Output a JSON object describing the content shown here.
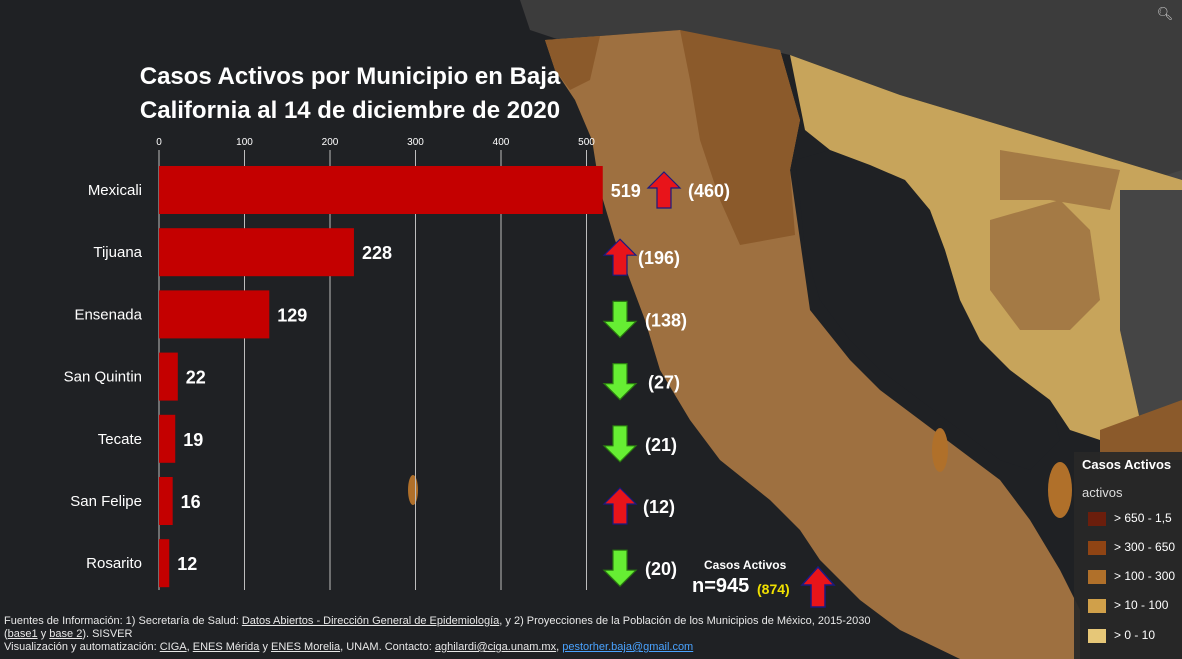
{
  "chart_data": {
    "type": "bar",
    "orientation": "horizontal",
    "title": "Casos Activos por Municipio en Baja California al 14 de diciembre de 2020",
    "title_line1": "Casos Activos por Municipio en Baja",
    "title_line2": "California al 14 de diciembre de 2020",
    "categories": [
      "Mexicali",
      "Tijuana",
      "Ensenada",
      "San Quintin",
      "Tecate",
      "San Felipe",
      "Rosarito"
    ],
    "values": [
      519,
      228,
      129,
      22,
      19,
      16,
      12
    ],
    "previous_values": [
      "(460)",
      "(196)",
      "(138)",
      "(27)",
      "(21)",
      "(12)",
      "(20)"
    ],
    "trend": [
      "up",
      "up",
      "down",
      "down",
      "down",
      "up",
      "down"
    ],
    "xlim": [
      0,
      520
    ],
    "xticks": [
      0,
      100,
      200,
      300,
      400,
      500
    ],
    "tick_labels": [
      "0",
      "100",
      "200",
      "300",
      "400",
      "500"
    ],
    "grid": true,
    "bar_color": "#c40000",
    "up_color": "#e8141a",
    "down_color": "#66ee33",
    "total": {
      "label": "Casos Activos",
      "value": "n=945",
      "previous": "(874)",
      "trend": "up"
    }
  },
  "legend": {
    "title": "Casos Activos",
    "subtitle": "activos",
    "items": [
      {
        "label": "> 650 - 1,5",
        "color": "#6b1e0c"
      },
      {
        "label": "> 300 - 650",
        "color": "#8f4414"
      },
      {
        "label": "> 100 - 300",
        "color": "#b0702a"
      },
      {
        "label": "> 10 - 100",
        "color": "#d0a04a"
      },
      {
        "label": "> 0 - 10",
        "color": "#e6c778"
      }
    ]
  },
  "map_colors": {
    "ocean": "#1f2124",
    "land_dark": "#3c3c3c",
    "baja": "#9e7040",
    "sonora_light": "#c7a45b",
    "sonora_mid": "#a47a45",
    "brown": "#8b5a2b"
  },
  "footer": {
    "l1_a": "Fuentes de Información: 1) Secretaría de Salud: ",
    "l1_link1": "Datos Abiertos - Dirección General de Epidemiología",
    "l1_b": ", y 2) Proyecciones de la Población de los Municipios de México, 2015-2030",
    "l2_a": "(",
    "l2_link1": "base1",
    "l2_b": " y ",
    "l2_link2": "base 2",
    "l2_c": "). SISVER",
    "l3_a": " Visualización y automatización: ",
    "l3_link1": "CIGA",
    "l3_b": ", ",
    "l3_link2": "ENES Mérida",
    "l3_c": " y ",
    "l3_link3": "ENES Morelia",
    "l3_d": ", UNAM. Contacto: ",
    "l3_link4": "aghilardi@ciga.unam.mx",
    "l3_e": ", ",
    "l3_link5": "pestorher.baja@gmail.com"
  },
  "search_icon": "search-icon"
}
